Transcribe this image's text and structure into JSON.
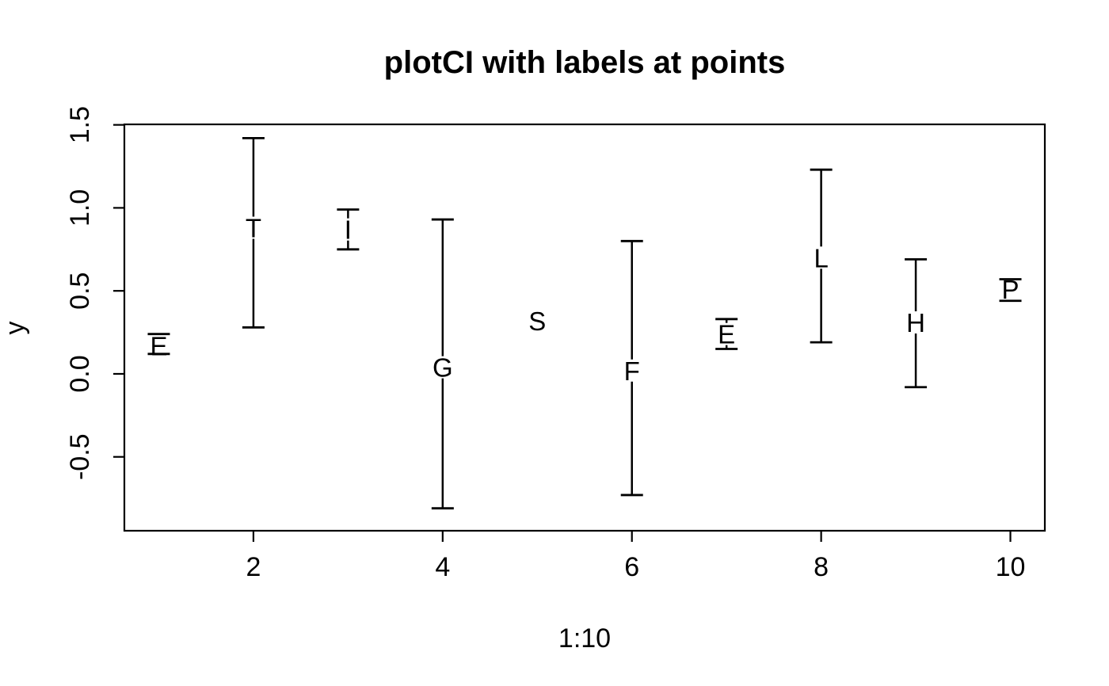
{
  "chart_data": {
    "type": "scatter",
    "subtype": "plotCI-error-bars-with-point-labels",
    "title": "plotCI with labels at points",
    "xlabel": "1:10",
    "ylabel": "y",
    "x": [
      1,
      2,
      3,
      4,
      5,
      6,
      7,
      8,
      9,
      10
    ],
    "y": [
      0.17,
      0.88,
      0.87,
      0.04,
      0.32,
      0.02,
      0.24,
      0.7,
      0.31,
      0.51
    ],
    "ci_low": [
      0.12,
      0.28,
      0.75,
      -0.81,
      0.32,
      -0.73,
      0.15,
      0.19,
      -0.08,
      0.44
    ],
    "ci_high": [
      0.24,
      1.42,
      0.99,
      0.93,
      0.32,
      0.8,
      0.33,
      1.23,
      0.69,
      0.57
    ],
    "point_labels": [
      "E",
      "T",
      "I",
      "G",
      "S",
      "F",
      "E",
      "L",
      "H",
      "P"
    ],
    "x_ticks": [
      2,
      4,
      6,
      8,
      10
    ],
    "x_tick_labels": [
      "2",
      "4",
      "6",
      "8",
      "10"
    ],
    "y_ticks": [
      -0.5,
      0.0,
      0.5,
      1.0,
      1.5
    ],
    "y_tick_labels": [
      "-0.5",
      "0.0",
      "0.5",
      "1.0",
      "1.5"
    ],
    "xlim": [
      0.636,
      10.364
    ],
    "ylim": [
      -0.945,
      1.503
    ],
    "grid": false,
    "legend": false,
    "stroke_color": "#000000",
    "text_color": "#000000",
    "background": "#ffffff"
  }
}
